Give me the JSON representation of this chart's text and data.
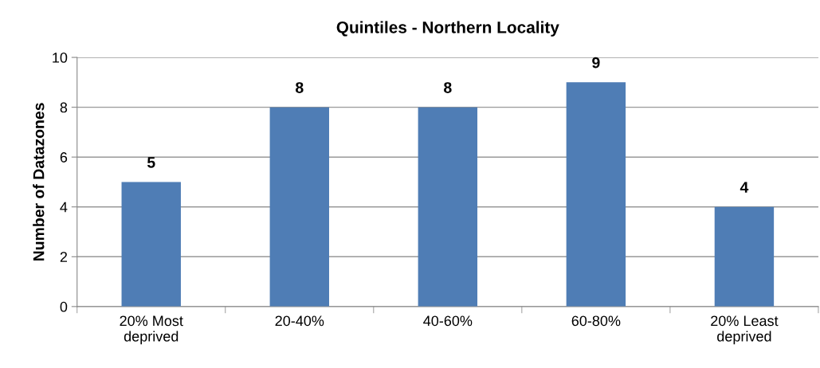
{
  "chart_data": {
    "type": "bar",
    "title": "Quintiles - Northern Locality",
    "ylabel": "Number of Datazones",
    "categories": [
      "20% Most\ndeprived",
      "20-40%",
      "40-60%",
      "60-80%",
      "20% Least\ndeprived"
    ],
    "values": [
      5,
      8,
      8,
      9,
      4
    ],
    "color": "#4f7db5",
    "ylim": [
      0,
      10
    ],
    "yticks": [
      0,
      2,
      4,
      6,
      8,
      10
    ],
    "grid": "y",
    "data_labels": true,
    "legend": false
  }
}
